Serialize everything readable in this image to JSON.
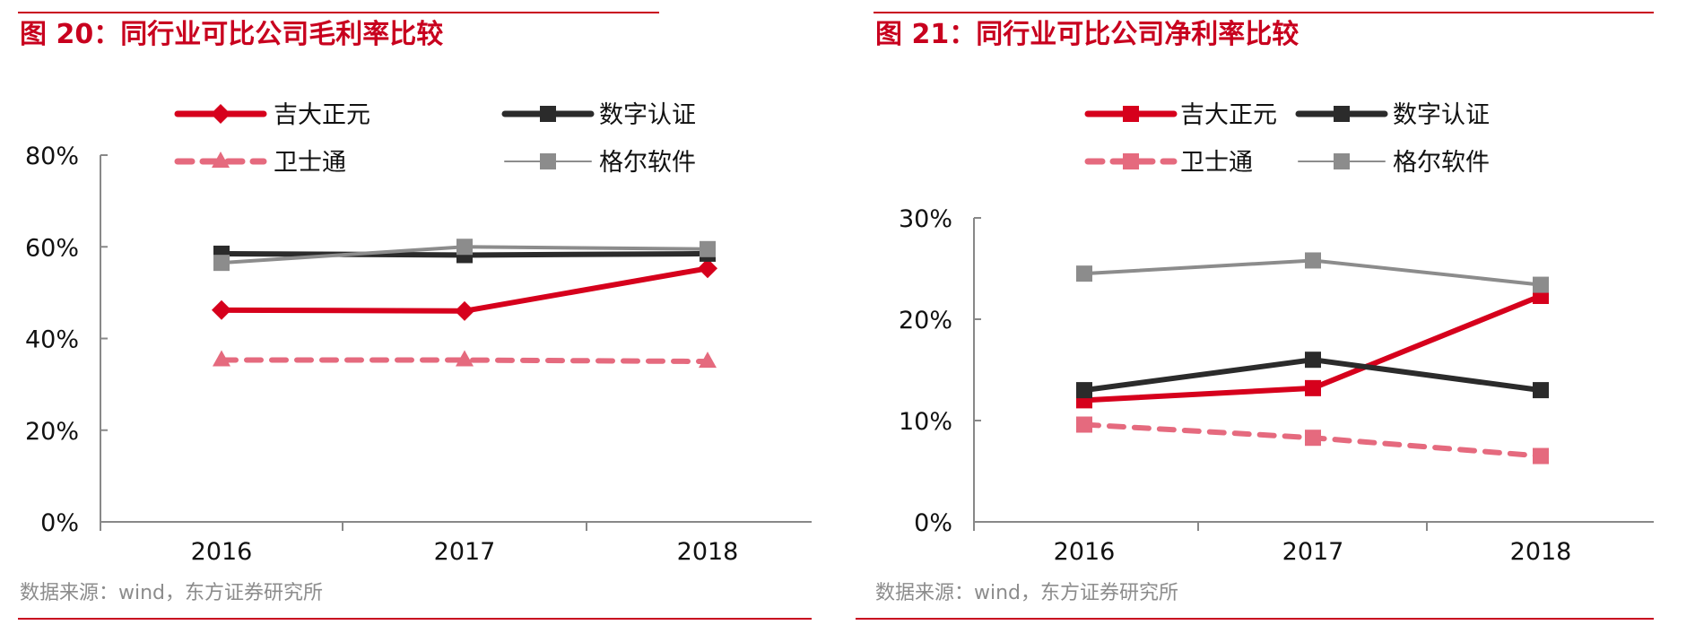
{
  "colors": {
    "brand_red": "#c8001e",
    "series_red": "#d6001c",
    "series_black": "#2b2b2b",
    "series_pink": "#e56a7e",
    "series_gray": "#8c8c8c",
    "axis": "#888888",
    "source_text": "#8c8c8c"
  },
  "chart_data": [
    {
      "type": "line",
      "title": "图 20：同行业可比公司毛利率比较",
      "categories": [
        "2016",
        "2017",
        "2018"
      ],
      "ylim": [
        0,
        80
      ],
      "yticks": [
        "0%",
        "20%",
        "40%",
        "60%",
        "80%"
      ],
      "ytick_values": [
        0,
        20,
        40,
        60,
        80
      ],
      "series": [
        {
          "name": "吉大正元",
          "values": [
            46.2,
            46.0,
            55.3
          ],
          "color": "#d6001c",
          "dash": false,
          "marker": "diamond",
          "width": 6
        },
        {
          "name": "数字认证",
          "values": [
            58.5,
            58.2,
            58.5
          ],
          "color": "#2b2b2b",
          "dash": false,
          "marker": "square",
          "width": 6
        },
        {
          "name": "卫士通",
          "values": [
            35.3,
            35.3,
            35.0
          ],
          "color": "#e56a7e",
          "dash": true,
          "marker": "triangle",
          "width": 6
        },
        {
          "name": "格尔软件",
          "values": [
            56.5,
            60.0,
            59.5
          ],
          "color": "#8c8c8c",
          "dash": false,
          "marker": "square",
          "width": 4
        }
      ],
      "source": "数据来源：wind，东方证券研究所"
    },
    {
      "type": "line",
      "title": "图 21：同行业可比公司净利率比较",
      "categories": [
        "2016",
        "2017",
        "2018"
      ],
      "ylim": [
        0,
        30
      ],
      "yticks": [
        "0%",
        "10%",
        "20%",
        "30%"
      ],
      "ytick_values": [
        0,
        10,
        20,
        30
      ],
      "series": [
        {
          "name": "吉大正元",
          "values": [
            12.0,
            13.2,
            22.3
          ],
          "color": "#d6001c",
          "dash": false,
          "marker": "square",
          "width": 6
        },
        {
          "name": "数字认证",
          "values": [
            13.0,
            16.0,
            13.0
          ],
          "color": "#2b2b2b",
          "dash": false,
          "marker": "square",
          "width": 6
        },
        {
          "name": "卫士通",
          "values": [
            9.6,
            8.3,
            6.5
          ],
          "color": "#e56a7e",
          "dash": true,
          "marker": "square",
          "width": 6
        },
        {
          "name": "格尔软件",
          "values": [
            24.5,
            25.8,
            23.4
          ],
          "color": "#8c8c8c",
          "dash": false,
          "marker": "square",
          "width": 4
        }
      ],
      "source": "数据来源：wind，东方证券研究所"
    }
  ]
}
